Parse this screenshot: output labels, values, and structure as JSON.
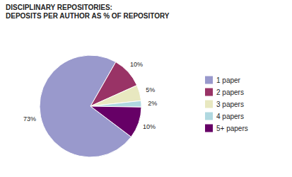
{
  "chart_data": {
    "type": "pie",
    "title": "DISCIPLINARY REPOSITORIES:\nDEPOSITS PER AUTHOR AS % OF REPOSITORY",
    "categories": [
      "1 paper",
      "2 papers",
      "3 papers",
      "4 papers",
      "5+ papers"
    ],
    "values": [
      73,
      10,
      5,
      2,
      10
    ],
    "value_labels": [
      "73%",
      "10%",
      "5%",
      "2%",
      "10%"
    ],
    "colors": [
      "#9999cc",
      "#993366",
      "#e8e8c0",
      "#b0d8e0",
      "#660066"
    ],
    "data_labels": true,
    "legend": "right"
  }
}
